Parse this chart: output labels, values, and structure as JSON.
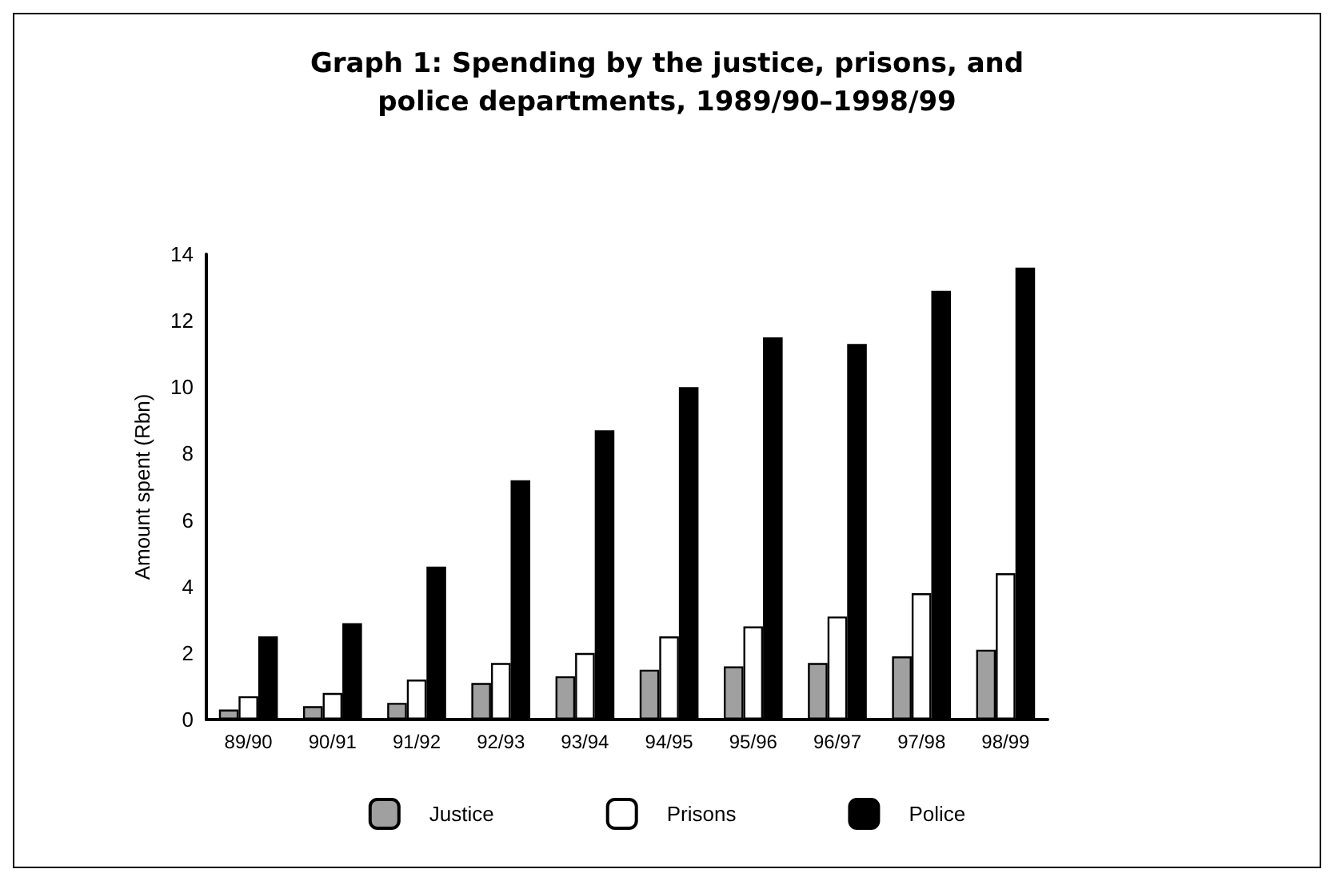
{
  "chart_data": {
    "type": "bar",
    "title": "Graph 1: Spending by the justice, prisons, and\npolice departments, 1989/90–1998/99",
    "ylabel": "Amount spent (Rbn)",
    "categories": [
      "89/90",
      "90/91",
      "91/92",
      "92/93",
      "93/94",
      "94/95",
      "95/96",
      "96/97",
      "97/98",
      "98/99"
    ],
    "series": [
      {
        "name": "Justice",
        "color": "#a0a0a0",
        "values": [
          0.3,
          0.4,
          0.5,
          1.1,
          1.3,
          1.5,
          1.6,
          1.7,
          1.9,
          2.1
        ]
      },
      {
        "name": "Prisons",
        "color": "#ffffff",
        "values": [
          0.7,
          0.8,
          1.2,
          1.7,
          2.0,
          2.5,
          2.8,
          3.1,
          3.8,
          4.4
        ]
      },
      {
        "name": "Police",
        "color": "#000000",
        "values": [
          2.5,
          2.9,
          4.6,
          7.2,
          8.7,
          10.0,
          11.5,
          11.3,
          12.9,
          13.6
        ]
      }
    ],
    "ylim": [
      0,
      14
    ],
    "yticks": [
      0,
      2,
      4,
      6,
      8,
      10,
      12,
      14
    ],
    "grid": false,
    "legend": "bottom"
  }
}
